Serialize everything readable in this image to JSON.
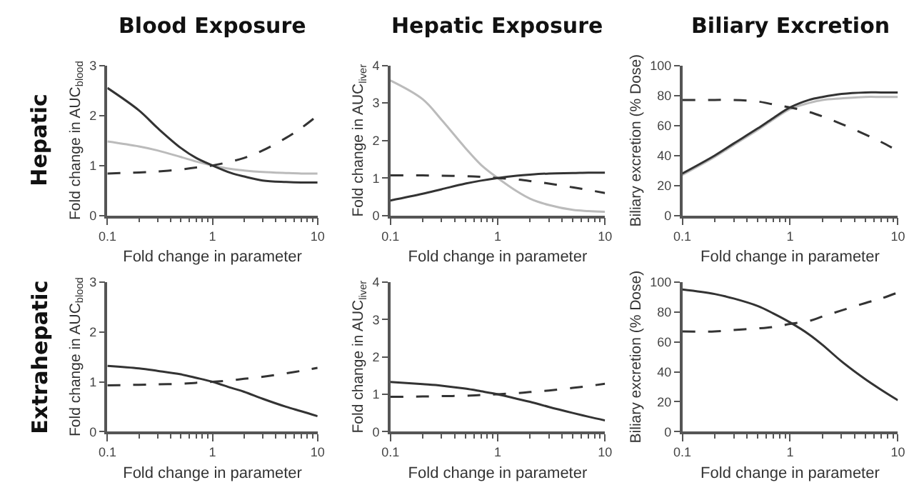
{
  "chart_data": [
    {
      "type": "line",
      "title": "Blood Exposure",
      "xlabel": "Fold change in parameter",
      "ylabel": "Fold change in AUC$_{blood}$",
      "annotations": [
        "Hepatic"
      ],
      "log": "x",
      "marker": "none",
      "xlim": [
        0.1,
        10
      ],
      "xticks": [
        0.1,
        1,
        10
      ],
      "ylim": [
        0,
        3
      ],
      "yticks": [
        0,
        1,
        2,
        3
      ],
      "x": [
        0.1,
        0.2,
        0.3,
        0.5,
        0.7,
        1,
        1.5,
        2,
        3,
        5,
        7,
        10
      ],
      "series": [
        {
          "color": "#bbbbbb",
          "line_style": "solid",
          "values": [
            1.48,
            1.38,
            1.3,
            1.17,
            1.08,
            1.0,
            0.93,
            0.9,
            0.87,
            0.85,
            0.84,
            0.84
          ]
        },
        {
          "color": "#333333",
          "line_style": "solid",
          "values": [
            2.55,
            2.1,
            1.75,
            1.35,
            1.15,
            1.0,
            0.85,
            0.78,
            0.7,
            0.67,
            0.66,
            0.66
          ]
        },
        {
          "color": "#333333",
          "line_style": "dashed",
          "values": [
            0.84,
            0.86,
            0.88,
            0.92,
            0.96,
            1.0,
            1.08,
            1.15,
            1.3,
            1.55,
            1.75,
            2.0
          ]
        }
      ]
    },
    {
      "type": "line",
      "title": "Hepatic Exposure",
      "xlabel": "Fold change in parameter",
      "ylabel": "Fold change in AUC$_{liver}$",
      "log": "x",
      "marker": "none",
      "xlim": [
        0.1,
        10
      ],
      "xticks": [
        0.1,
        1,
        10
      ],
      "ylim": [
        0,
        4
      ],
      "yticks": [
        0,
        1,
        2,
        3,
        4
      ],
      "x": [
        0.1,
        0.2,
        0.3,
        0.5,
        0.7,
        1,
        1.5,
        2,
        3,
        5,
        7,
        10
      ],
      "series": [
        {
          "color": "#bbbbbb",
          "line_style": "solid",
          "values": [
            3.6,
            3.1,
            2.55,
            1.8,
            1.35,
            1.0,
            0.65,
            0.45,
            0.28,
            0.15,
            0.12,
            0.1
          ]
        },
        {
          "color": "#333333",
          "line_style": "solid",
          "values": [
            0.4,
            0.58,
            0.7,
            0.85,
            0.93,
            1.0,
            1.06,
            1.09,
            1.12,
            1.13,
            1.14,
            1.14
          ]
        },
        {
          "color": "#333333",
          "line_style": "dashed",
          "values": [
            1.07,
            1.07,
            1.06,
            1.05,
            1.03,
            1.0,
            0.96,
            0.92,
            0.85,
            0.75,
            0.68,
            0.6
          ]
        }
      ]
    },
    {
      "type": "line",
      "title": "Biliary Excretion",
      "xlabel": "Fold change in parameter",
      "ylabel": "Biliary excretion (% Dose)",
      "log": "x",
      "marker": "none",
      "xlim": [
        0.1,
        10
      ],
      "xticks": [
        0.1,
        1,
        10
      ],
      "ylim": [
        0,
        100
      ],
      "yticks": [
        0,
        20,
        40,
        60,
        80,
        100
      ],
      "x": [
        0.1,
        0.2,
        0.3,
        0.5,
        0.7,
        1,
        1.5,
        2,
        3,
        5,
        7,
        10
      ],
      "series": [
        {
          "color": "#bbbbbb",
          "line_style": "solid",
          "values": [
            27,
            39,
            47,
            57,
            64,
            71,
            75,
            77,
            78,
            79,
            79,
            79
          ]
        },
        {
          "color": "#333333",
          "line_style": "solid",
          "values": [
            28,
            40,
            48,
            58,
            65,
            72,
            77,
            79,
            81,
            82,
            82,
            82
          ]
        },
        {
          "color": "#333333",
          "line_style": "dashed",
          "values": [
            77,
            77,
            77,
            76,
            74,
            72,
            69,
            66,
            61,
            54,
            49,
            43
          ]
        }
      ]
    },
    {
      "type": "line",
      "xlabel": "Fold change in parameter",
      "ylabel": "Fold change in AUC$_{blood}$",
      "annotations": [
        "Extrahepatic"
      ],
      "log": "x",
      "marker": "none",
      "xlim": [
        0.1,
        10
      ],
      "xticks": [
        0.1,
        1,
        10
      ],
      "ylim": [
        0,
        3
      ],
      "yticks": [
        0,
        1,
        2,
        3
      ],
      "x": [
        0.1,
        0.2,
        0.3,
        0.5,
        0.7,
        1,
        1.5,
        2,
        3,
        5,
        7,
        10
      ],
      "series": [
        {
          "color": "#333333",
          "line_style": "solid",
          "values": [
            1.32,
            1.27,
            1.22,
            1.15,
            1.08,
            1.0,
            0.88,
            0.8,
            0.66,
            0.5,
            0.41,
            0.31
          ]
        },
        {
          "color": "#333333",
          "line_style": "dashed",
          "values": [
            0.93,
            0.94,
            0.95,
            0.96,
            0.98,
            1.0,
            1.03,
            1.06,
            1.1,
            1.17,
            1.22,
            1.28
          ]
        }
      ]
    },
    {
      "type": "line",
      "xlabel": "Fold change in parameter",
      "ylabel": "Fold change in AUC$_{liver}$",
      "log": "x",
      "marker": "none",
      "xlim": [
        0.1,
        10
      ],
      "xticks": [
        0.1,
        1,
        10
      ],
      "ylim": [
        0,
        4
      ],
      "yticks": [
        0,
        1,
        2,
        3,
        4
      ],
      "x": [
        0.1,
        0.2,
        0.3,
        0.5,
        0.7,
        1,
        1.5,
        2,
        3,
        5,
        7,
        10
      ],
      "series": [
        {
          "color": "#333333",
          "line_style": "solid",
          "values": [
            1.33,
            1.27,
            1.23,
            1.15,
            1.08,
            1.0,
            0.88,
            0.8,
            0.66,
            0.5,
            0.4,
            0.3
          ]
        },
        {
          "color": "#333333",
          "line_style": "dashed",
          "values": [
            0.93,
            0.94,
            0.95,
            0.96,
            0.98,
            1.0,
            1.03,
            1.06,
            1.1,
            1.17,
            1.22,
            1.28
          ]
        }
      ]
    },
    {
      "type": "line",
      "xlabel": "Fold change in parameter",
      "ylabel": "Biliary excretion (% Dose)",
      "log": "x",
      "marker": "none",
      "xlim": [
        0.1,
        10
      ],
      "xticks": [
        0.1,
        1,
        10
      ],
      "ylim": [
        0,
        100
      ],
      "yticks": [
        0,
        20,
        40,
        60,
        80,
        100
      ],
      "x": [
        0.1,
        0.2,
        0.3,
        0.5,
        0.7,
        1,
        1.5,
        2,
        3,
        5,
        7,
        10
      ],
      "series": [
        {
          "color": "#333333",
          "line_style": "solid",
          "values": [
            95,
            92,
            89,
            84,
            79,
            73,
            65,
            58,
            47,
            35,
            28,
            21
          ]
        },
        {
          "color": "#333333",
          "line_style": "dashed",
          "values": [
            67,
            67,
            68,
            69,
            70,
            72,
            74,
            77,
            81,
            86,
            89,
            93
          ]
        }
      ]
    }
  ]
}
